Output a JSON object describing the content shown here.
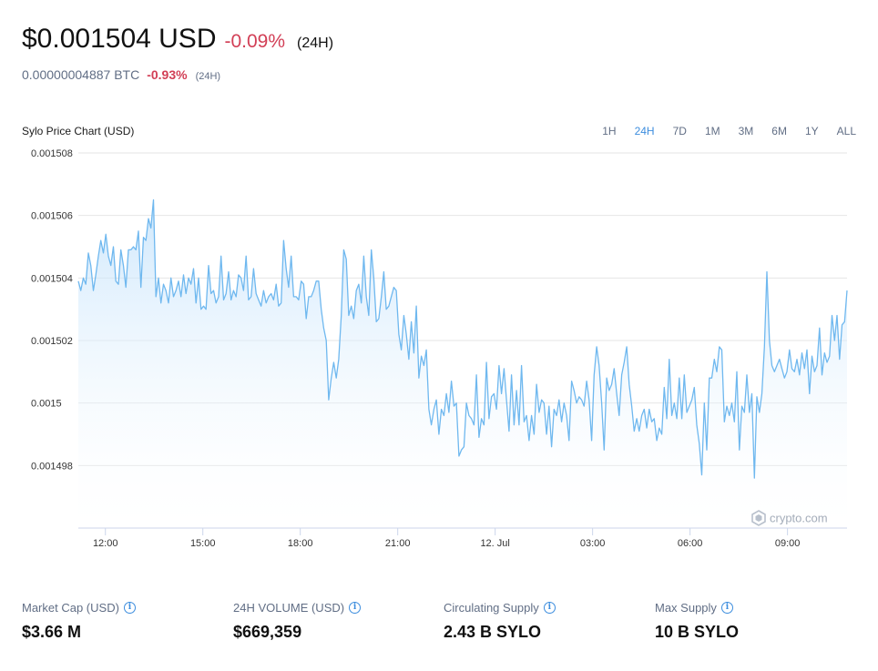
{
  "header": {
    "price": "$0.001504 USD",
    "change": "-0.09%",
    "period": "(24H)"
  },
  "btc": {
    "value": "0.00000004887 BTC",
    "change": "-0.93%",
    "period": "(24H)"
  },
  "chart_title": "Sylo Price Chart (USD)",
  "range_tabs": [
    "1H",
    "24H",
    "7D",
    "1M",
    "3M",
    "6M",
    "1Y",
    "ALL"
  ],
  "active_range": "24H",
  "watermark": "crypto.com",
  "stats": [
    {
      "label": "Market Cap (USD)",
      "value": "$3.66 M",
      "info_icon": "info-circle-icon"
    },
    {
      "label": "24H VOLUME (USD)",
      "value": "$669,359",
      "info_icon": "info-circle-icon"
    },
    {
      "label": "Circulating Supply",
      "value": "2.43 B SYLO",
      "info_icon": "info-circle-icon"
    },
    {
      "label": "Max Supply",
      "value": "10 B SYLO",
      "info_icon": "info-circle-icon"
    }
  ],
  "colors": {
    "line": "#6fb8ef",
    "accent": "#3c8dde",
    "negative": "#d23f56"
  },
  "chart_data": {
    "type": "area",
    "xlabel": "",
    "ylabel": "",
    "yticks": [
      0.001498,
      0.0015,
      0.001502,
      0.001504,
      0.001506,
      0.001508
    ],
    "ytick_labels": [
      "0.001498",
      "0.0015",
      "0.001502",
      "0.001504",
      "0.001506",
      "0.001508"
    ],
    "ylim": [
      0.001496,
      0.001508
    ],
    "xlim": [
      "11 Jul 11:10",
      "12 Jul 10:50"
    ],
    "xticks": [
      "11 Jul 12:00",
      "11 Jul 15:00",
      "11 Jul 18:00",
      "11 Jul 21:00",
      "12 Jul 00:00",
      "12 Jul 03:00",
      "12 Jul 06:00",
      "12 Jul 09:00"
    ],
    "xtick_labels": [
      "12:00",
      "15:00",
      "18:00",
      "21:00",
      "12. Jul",
      "03:00",
      "06:00",
      "09:00"
    ],
    "grid": true,
    "series": [
      {
        "name": "",
        "x_start": "11 Jul 11:10",
        "x_end": "12 Jul 10:50",
        "values": [
          0.0015039,
          0.0015036,
          0.001504,
          0.0015038,
          0.0015048,
          0.0015044,
          0.0015036,
          0.0015041,
          0.0015047,
          0.0015052,
          0.0015048,
          0.0015054,
          0.0015047,
          0.0015044,
          0.001505,
          0.0015039,
          0.0015038,
          0.0015049,
          0.0015044,
          0.0015037,
          0.0015049,
          0.0015049,
          0.001505,
          0.0015049,
          0.0015055,
          0.0015037,
          0.0015053,
          0.0015052,
          0.0015059,
          0.0015056,
          0.0015065,
          0.0015034,
          0.001504,
          0.0015032,
          0.0015038,
          0.0015036,
          0.0015032,
          0.001504,
          0.0015034,
          0.0015036,
          0.0015039,
          0.0015034,
          0.0015041,
          0.0015035,
          0.001504,
          0.0015038,
          0.0015043,
          0.0015032,
          0.001504,
          0.001503,
          0.0015031,
          0.001503,
          0.0015044,
          0.0015035,
          0.0015036,
          0.0015032,
          0.0015034,
          0.0015047,
          0.0015033,
          0.0015035,
          0.0015042,
          0.0015033,
          0.0015036,
          0.0015034,
          0.0015041,
          0.001504,
          0.0015036,
          0.0015047,
          0.0015033,
          0.0015034,
          0.0015043,
          0.0015035,
          0.0015033,
          0.0015031,
          0.0015036,
          0.0015032,
          0.0015034,
          0.0015035,
          0.0015033,
          0.0015038,
          0.0015031,
          0.0015032,
          0.0015052,
          0.0015043,
          0.0015037,
          0.0015047,
          0.0015034,
          0.0015034,
          0.0015033,
          0.0015039,
          0.0015038,
          0.0015027,
          0.0015034,
          0.0015034,
          0.0015036,
          0.0015039,
          0.0015039,
          0.001503,
          0.0015024,
          0.001502,
          0.0015001,
          0.0015008,
          0.0015013,
          0.0015008,
          0.0015014,
          0.0015028,
          0.0015049,
          0.0015046,
          0.0015028,
          0.0015031,
          0.0015027,
          0.0015036,
          0.0015038,
          0.0015032,
          0.0015047,
          0.0015034,
          0.0015028,
          0.0015049,
          0.001504,
          0.0015026,
          0.0015027,
          0.0015034,
          0.0015042,
          0.001503,
          0.0015031,
          0.0015034,
          0.0015037,
          0.0015036,
          0.0015022,
          0.0015017,
          0.0015028,
          0.0015022,
          0.0015014,
          0.0015026,
          0.0015016,
          0.0015031,
          0.0015008,
          0.0015015,
          0.0015012,
          0.0015017,
          0.0014998,
          0.0014993,
          0.0014998,
          0.0015001,
          0.001499,
          0.0014998,
          0.0014996,
          0.0015003,
          0.0014997,
          0.0015007,
          0.0014999,
          0.0015,
          0.0014983,
          0.0014985,
          0.0014986,
          0.0015,
          0.0014996,
          0.0014995,
          0.0014993,
          0.0015009,
          0.0014989,
          0.0014995,
          0.0014993,
          0.0015013,
          0.0014995,
          0.0015002,
          0.0015003,
          0.0014998,
          0.0015012,
          0.0015003,
          0.0015011,
          0.0015001,
          0.0014991,
          0.0015009,
          0.0014993,
          0.0015004,
          0.0014993,
          0.0015012,
          0.0014994,
          0.0014996,
          0.0014988,
          0.0014996,
          0.001499,
          0.0015006,
          0.0014997,
          0.0015001,
          0.0015,
          0.001499,
          0.0014999,
          0.0014986,
          0.0014998,
          0.0014996,
          0.0015001,
          0.0014994,
          0.0015,
          0.0014996,
          0.0014988,
          0.0015007,
          0.0015004,
          0.0015,
          0.0015002,
          0.0015001,
          0.0014999,
          0.0015007,
          0.0015001,
          0.0014988,
          0.0015009,
          0.0015018,
          0.0015012,
          0.0015,
          0.0014985,
          0.0015008,
          0.0015004,
          0.0015006,
          0.0015011,
          0.0015003,
          0.0014996,
          0.0015009,
          0.0015013,
          0.0015018,
          0.0015006,
          0.0014999,
          0.0014991,
          0.0014995,
          0.0014991,
          0.0014996,
          0.0014998,
          0.0014992,
          0.0014998,
          0.0014994,
          0.0014995,
          0.0014988,
          0.0014992,
          0.001499,
          0.0015005,
          0.0014995,
          0.0015014,
          0.0014996,
          0.0015,
          0.0014995,
          0.0015008,
          0.0014995,
          0.0015009,
          0.0014997,
          0.0014999,
          0.0015001,
          0.0015005,
          0.0014993,
          0.0014987,
          0.0014977,
          0.0015,
          0.0014985,
          0.0015008,
          0.0015008,
          0.0015014,
          0.001501,
          0.0015018,
          0.0015017,
          0.0014994,
          0.0014999,
          0.0014996,
          0.0015,
          0.0014994,
          0.001501,
          0.0014985,
          0.0014999,
          0.0014997,
          0.0015009,
          0.0014997,
          0.0015003,
          0.0014976,
          0.0015002,
          0.0014997,
          0.0015003,
          0.0015018,
          0.0015042,
          0.001502,
          0.0015012,
          0.001501,
          0.0015012,
          0.0015014,
          0.0015011,
          0.0015008,
          0.001501,
          0.0015017,
          0.0015011,
          0.001501,
          0.0015014,
          0.0015009,
          0.0015016,
          0.0015011,
          0.0015017,
          0.0015003,
          0.0015015,
          0.001501,
          0.0015012,
          0.0015024,
          0.0015009,
          0.0015016,
          0.0015013,
          0.0015015,
          0.0015028,
          0.001502,
          0.0015028,
          0.0015014,
          0.0015025,
          0.0015026,
          0.0015036
        ]
      }
    ]
  }
}
